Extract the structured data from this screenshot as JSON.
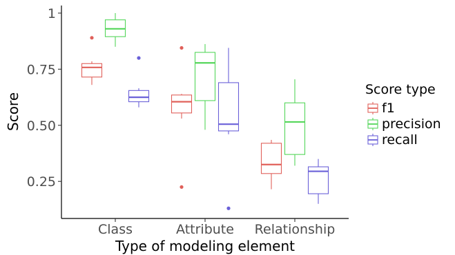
{
  "chart_data": {
    "type": "boxplot",
    "xlabel": "Type of modeling element",
    "ylabel": "Score",
    "categories": [
      "Class",
      "Attribute",
      "Relationship"
    ],
    "ylim": [
      0.1,
      1.03
    ],
    "yticks": [
      0.25,
      0.5,
      0.75,
      1
    ],
    "ytick_labels": [
      "0.25",
      "0.50",
      "0.75",
      "1"
    ],
    "grid": false,
    "legend": {
      "title": "Score type",
      "position": "right"
    },
    "series": [
      {
        "name": "f1",
        "color": "#e0605a",
        "boxes": [
          {
            "category": "Class",
            "whisker_low": 0.68,
            "q1": 0.715,
            "median": 0.758,
            "q3": 0.775,
            "whisker_high": 0.785,
            "outliers": [
              0.89
            ]
          },
          {
            "category": "Attribute",
            "whisker_low": 0.53,
            "q1": 0.555,
            "median": 0.605,
            "q3": 0.635,
            "whisker_high": 0.64,
            "outliers": [
              0.845,
              0.225
            ]
          },
          {
            "category": "Relationship",
            "whisker_low": 0.215,
            "q1": 0.285,
            "median": 0.325,
            "q3": 0.42,
            "whisker_high": 0.435,
            "outliers": []
          }
        ]
      },
      {
        "name": "precision",
        "color": "#54d65a",
        "boxes": [
          {
            "category": "Class",
            "whisker_low": 0.85,
            "q1": 0.895,
            "median": 0.93,
            "q3": 0.97,
            "whisker_high": 1.0,
            "outliers": []
          },
          {
            "category": "Attribute",
            "whisker_low": 0.48,
            "q1": 0.61,
            "median": 0.778,
            "q3": 0.825,
            "whisker_high": 0.862,
            "outliers": []
          },
          {
            "category": "Relationship",
            "whisker_low": 0.32,
            "q1": 0.37,
            "median": 0.515,
            "q3": 0.6,
            "whisker_high": 0.705,
            "outliers": []
          }
        ]
      },
      {
        "name": "recall",
        "color": "#6a60d8",
        "boxes": [
          {
            "category": "Class",
            "whisker_low": 0.58,
            "q1": 0.605,
            "median": 0.625,
            "q3": 0.655,
            "whisker_high": 0.665,
            "outliers": [
              0.8
            ]
          },
          {
            "category": "Attribute",
            "whisker_low": 0.46,
            "q1": 0.475,
            "median": 0.505,
            "q3": 0.69,
            "whisker_high": 0.845,
            "outliers": [
              0.13
            ]
          },
          {
            "category": "Relationship",
            "whisker_low": 0.15,
            "q1": 0.195,
            "median": 0.295,
            "q3": 0.315,
            "whisker_high": 0.35,
            "outliers": []
          }
        ]
      }
    ]
  }
}
